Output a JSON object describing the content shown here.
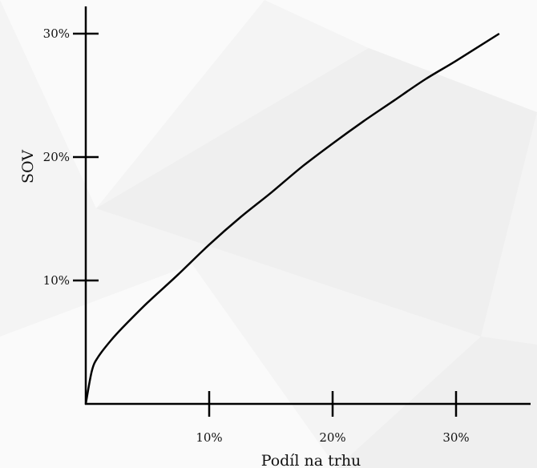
{
  "chart_data": {
    "type": "line",
    "xlabel": "Podíl na trhu",
    "ylabel": "SOV",
    "xlim": [
      0,
      35
    ],
    "ylim": [
      0,
      32
    ],
    "x_ticks": [
      {
        "value": 10,
        "label": "10%"
      },
      {
        "value": 20,
        "label": "20%"
      },
      {
        "value": 30,
        "label": "30%"
      }
    ],
    "y_ticks": [
      {
        "value": 10,
        "label": "10%"
      },
      {
        "value": 20,
        "label": "20%"
      },
      {
        "value": 30,
        "label": "30%"
      }
    ],
    "grid": false,
    "legend": "none",
    "series": [
      {
        "x": [
          0,
          0.5,
          1,
          2,
          3,
          5,
          7.5,
          10,
          12.5,
          15,
          17.5,
          20,
          22.5,
          25,
          27.5,
          30,
          33.5
        ],
        "values": [
          0,
          2.7,
          3.8,
          5.1,
          6.2,
          8.2,
          10.5,
          12.9,
          15.1,
          17.1,
          19.2,
          21.1,
          22.9,
          24.6,
          26.3,
          27.8,
          30.0
        ]
      }
    ]
  }
}
